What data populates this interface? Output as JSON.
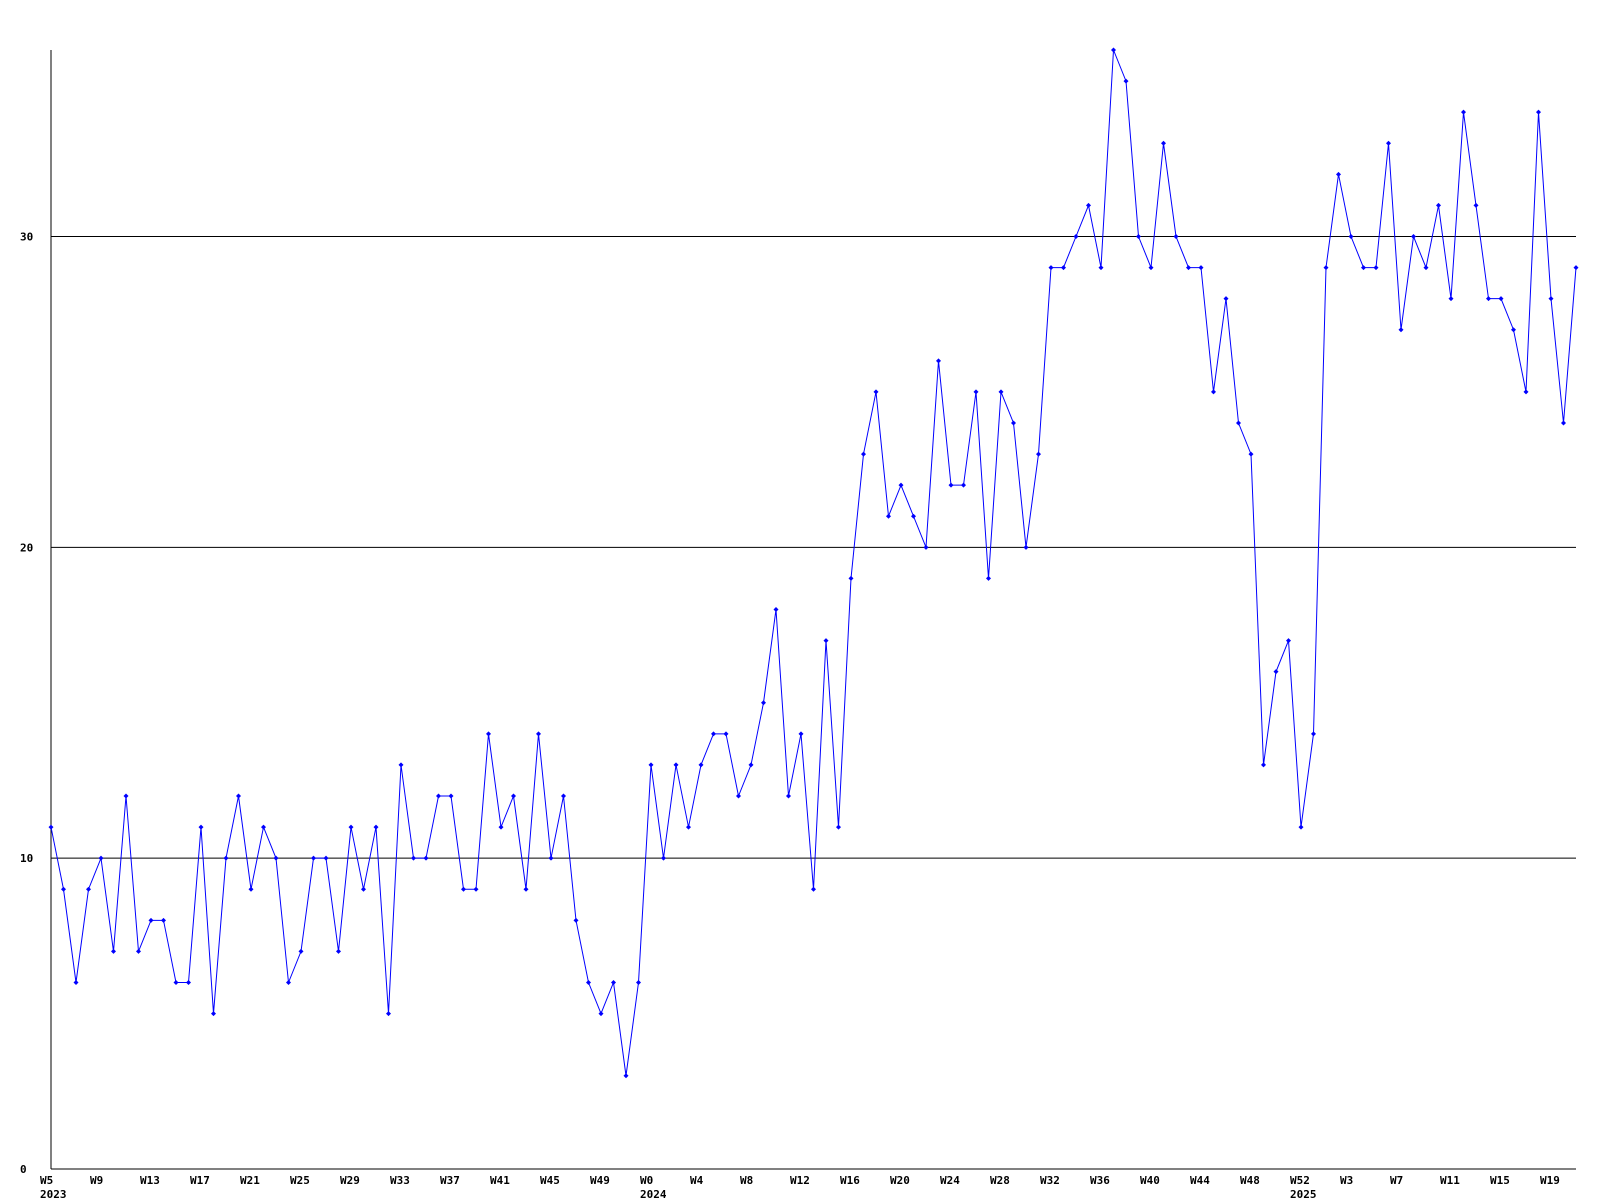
{
  "chart_data": {
    "type": "line",
    "categories": [
      "W5",
      null,
      null,
      null,
      "W9",
      null,
      null,
      null,
      "W13",
      null,
      null,
      null,
      "W17",
      null,
      null,
      null,
      "W21",
      null,
      null,
      null,
      "W25",
      null,
      null,
      null,
      "W29",
      null,
      null,
      null,
      "W33",
      null,
      null,
      null,
      "W37",
      null,
      null,
      null,
      "W41",
      null,
      null,
      null,
      "W45",
      null,
      null,
      null,
      "W49",
      null,
      null,
      null,
      "W0",
      null,
      null,
      null,
      "W4",
      null,
      null,
      null,
      "W8",
      null,
      null,
      null,
      "W12",
      null,
      null,
      null,
      "W16",
      null,
      null,
      null,
      "W20",
      null,
      null,
      null,
      "W24",
      null,
      null,
      null,
      "W28",
      null,
      null,
      null,
      "W32",
      null,
      null,
      null,
      "W36",
      null,
      null,
      null,
      "W40",
      null,
      null,
      null,
      "W44",
      null,
      null,
      null,
      "W48",
      null,
      null,
      null,
      "W52",
      null,
      null,
      null,
      "W3",
      null,
      null,
      null,
      "W7",
      null,
      null,
      null,
      "W11",
      null,
      null,
      null,
      "W15",
      null,
      null,
      null,
      "W19",
      null,
      null
    ],
    "category_years": [
      "2023",
      null,
      null,
      null,
      null,
      null,
      null,
      null,
      null,
      null,
      null,
      null,
      null,
      null,
      null,
      null,
      null,
      null,
      null,
      null,
      null,
      null,
      null,
      null,
      null,
      null,
      null,
      null,
      null,
      null,
      null,
      null,
      null,
      null,
      null,
      null,
      null,
      null,
      null,
      null,
      null,
      null,
      null,
      null,
      null,
      null,
      null,
      null,
      "2024",
      null,
      null,
      null,
      null,
      null,
      null,
      null,
      null,
      null,
      null,
      null,
      null,
      null,
      null,
      null,
      null,
      null,
      null,
      null,
      null,
      null,
      null,
      null,
      null,
      null,
      null,
      null,
      null,
      null,
      null,
      null,
      null,
      null,
      null,
      null,
      null,
      null,
      null,
      null,
      null,
      null,
      null,
      null,
      null,
      null,
      null,
      null,
      null,
      null,
      null,
      null,
      "2025",
      null,
      null,
      null,
      null,
      null,
      null,
      null,
      null,
      null,
      null,
      null,
      null,
      null,
      null,
      null,
      null,
      null,
      null,
      null,
      null,
      null
    ],
    "series": [
      {
        "color": "#0000ff",
        "values": [
          11,
          9,
          6,
          9,
          10,
          7,
          12,
          7,
          8,
          8,
          6,
          6,
          11,
          5,
          10,
          12,
          9,
          11,
          10,
          6,
          7,
          10,
          10,
          7,
          11,
          9,
          11,
          5,
          13,
          10,
          10,
          12,
          12,
          9,
          9,
          14,
          11,
          12,
          9,
          14,
          10,
          12,
          8,
          6,
          5,
          6,
          3,
          6,
          13,
          10,
          13,
          11,
          13,
          14,
          14,
          12,
          13,
          15,
          18,
          12,
          14,
          9,
          17,
          11,
          19,
          23,
          25,
          21,
          22,
          21,
          20,
          26,
          22,
          22,
          25,
          19,
          25,
          24,
          20,
          23,
          29,
          29,
          30,
          31,
          29,
          36,
          35,
          30,
          29,
          33,
          30,
          29,
          29,
          25,
          28,
          24,
          23,
          13,
          16,
          17,
          11,
          14,
          29,
          32,
          30,
          29,
          29,
          33,
          27,
          30,
          29,
          31,
          28,
          34,
          31,
          28,
          28,
          27,
          25,
          34,
          28,
          24,
          29
        ]
      }
    ],
    "ylim": [
      0,
      36
    ],
    "yticks": [
      0,
      10,
      20,
      30
    ],
    "grid": true
  }
}
